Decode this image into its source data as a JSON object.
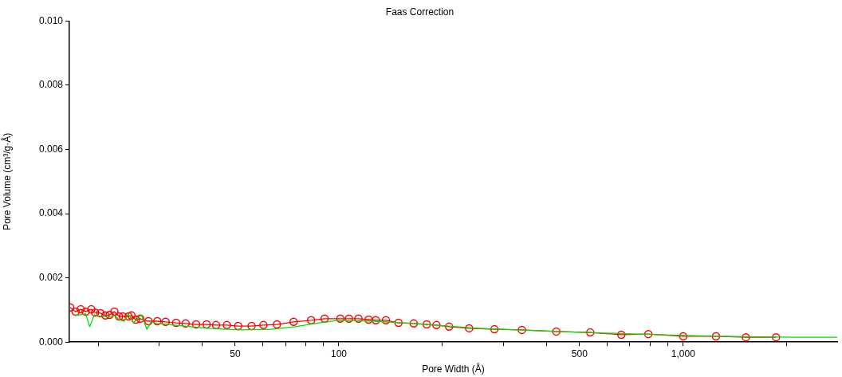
{
  "chart_data": {
    "type": "line",
    "title": "Faas Correction",
    "xlabel": "Pore Width (Å)",
    "ylabel": "Pore Volume (cm³/g·Å)",
    "log": "x",
    "grid": false,
    "legend": false,
    "xlim": [
      16.5,
      2800
    ],
    "xticks": [
      {
        "value": 20,
        "label": null
      },
      {
        "value": 30,
        "label": null
      },
      {
        "value": 40,
        "label": null
      },
      50,
      {
        "value": 60,
        "label": null
      },
      {
        "value": 70,
        "label": null
      },
      {
        "value": 80,
        "label": null
      },
      {
        "value": 90,
        "label": null
      },
      100,
      {
        "value": 200,
        "label": null
      },
      {
        "value": 300,
        "label": null
      },
      {
        "value": 400,
        "label": null
      },
      500,
      {
        "value": 600,
        "label": null
      },
      {
        "value": 700,
        "label": null
      },
      {
        "value": 800,
        "label": null
      },
      {
        "value": 900,
        "label": null
      },
      {
        "value": 1000,
        "label": "1,000"
      },
      {
        "value": 2000,
        "label": null
      }
    ],
    "ylim": [
      0,
      0.01
    ],
    "yticks": [
      {
        "value": 0,
        "label": "0.000"
      },
      {
        "value": 0.002,
        "label": "0.002"
      },
      {
        "value": 0.004,
        "label": "0.004"
      },
      {
        "value": 0.006,
        "label": "0.006"
      },
      {
        "value": 0.008,
        "label": "0.008"
      },
      {
        "value": 0.01,
        "label": "0.010"
      }
    ],
    "series": [
      {
        "color": "#00dd00",
        "marker": "none",
        "x": [
          17.1,
          17.8,
          18.4,
          18.9,
          19.5,
          20.4,
          21.3,
          22.3,
          23.0,
          23.8,
          24.5,
          25.3,
          26.7,
          27.7,
          28.5,
          29.7,
          31.9,
          35.5,
          41.7,
          51.5,
          63.7,
          74.7,
          87.6,
          100,
          127,
          165,
          253,
          430,
          730,
          1240,
          2100,
          2800
        ],
        "values": [
          0.00083,
          0.00085,
          0.00088,
          0.00048,
          0.00085,
          0.0008,
          0.00078,
          0.00083,
          0.0007,
          0.00065,
          0.00088,
          0.0006,
          0.00085,
          0.0004,
          0.00063,
          0.00058,
          0.00055,
          0.0005,
          0.00043,
          0.00038,
          0.0004,
          0.00048,
          0.0006,
          0.00068,
          0.00065,
          0.00058,
          0.00043,
          0.00033,
          0.00025,
          0.00018,
          0.00015,
          0.00015
        ]
      },
      {
        "color": "#ff0000",
        "marker": "circle",
        "x": [
          16.6,
          17.2,
          17.8,
          18.4,
          19.1,
          19.6,
          20.3,
          21.0,
          21.6,
          22.3,
          23.0,
          23.6,
          24.5,
          25.0,
          25.7,
          26.5,
          28.0,
          29.7,
          31.4,
          33.7,
          35.9,
          38.5,
          41.3,
          44.0,
          47.3,
          51.0,
          55.8,
          60.4,
          66.1,
          73.9,
          83.1,
          90.9,
          101,
          107,
          114,
          122,
          128,
          137,
          149,
          165,
          180,
          192,
          209,
          239,
          283,
          340,
          428,
          537,
          661,
          792,
          1000,
          1245,
          1520,
          1860
        ],
        "values": [
          0.00108,
          0.00095,
          0.00102,
          0.00095,
          0.00102,
          0.00092,
          0.0009,
          0.00083,
          0.00085,
          0.00095,
          0.0008,
          0.0008,
          0.0008,
          0.00083,
          0.0007,
          0.00073,
          0.00065,
          0.00065,
          0.00063,
          0.0006,
          0.00058,
          0.00055,
          0.00055,
          0.00053,
          0.00053,
          0.0005,
          0.0005,
          0.00053,
          0.00055,
          0.00063,
          0.00068,
          0.00073,
          0.00073,
          0.00073,
          0.00073,
          0.0007,
          0.00068,
          0.00068,
          0.0006,
          0.00058,
          0.00055,
          0.00053,
          0.00048,
          0.00043,
          0.0004,
          0.00038,
          0.00033,
          0.0003,
          0.00023,
          0.00025,
          0.00018,
          0.00018,
          0.00015,
          0.00015
        ]
      }
    ]
  }
}
